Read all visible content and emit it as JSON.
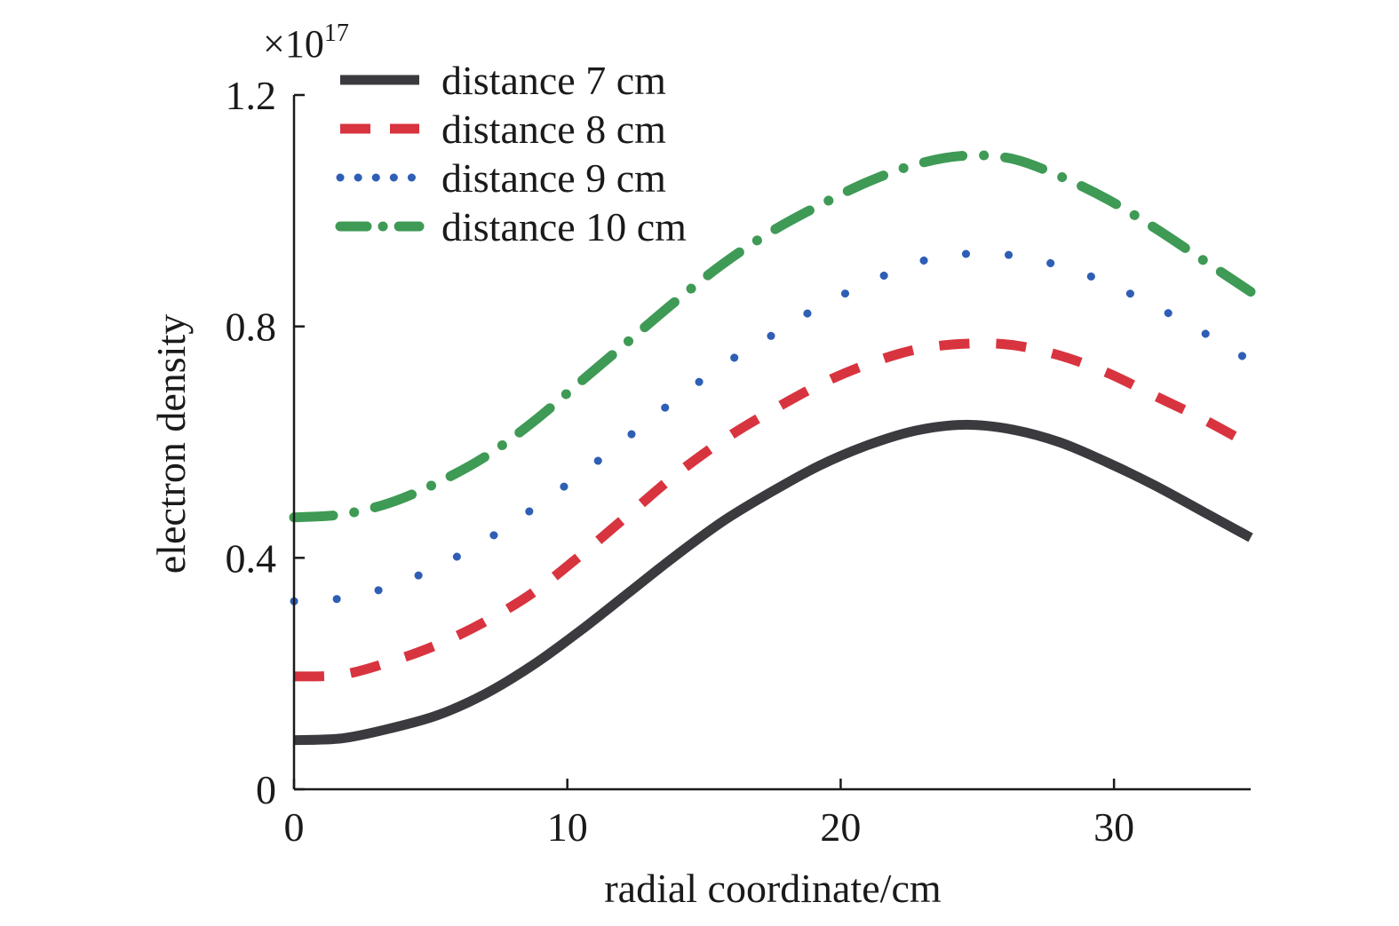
{
  "chart_data": {
    "type": "line",
    "title": "",
    "xlabel": "radial coordinate/cm",
    "ylabel": "electron density",
    "y_multiplier": {
      "base": "×10",
      "exponent": "17"
    },
    "xlim": [
      0,
      35
    ],
    "ylim": [
      0,
      1.2
    ],
    "x_ticks": [
      0,
      10,
      20,
      30
    ],
    "x_tick_labels": [
      "0",
      "10",
      "20",
      "30"
    ],
    "y_ticks": [
      0,
      0.4,
      0.8,
      1.2
    ],
    "y_tick_labels": [
      "0",
      "0.4",
      "0.8",
      "1.2"
    ],
    "grid": false,
    "legend_position": "top-left",
    "x": [
      0,
      1.75,
      3.5,
      5.25,
      7,
      8.75,
      10.5,
      12.25,
      14,
      15.75,
      17.5,
      19.25,
      21,
      22.75,
      24.5,
      26.25,
      28,
      29.75,
      31.5,
      33.25,
      35
    ],
    "series": [
      {
        "name": "distance 7 cm",
        "style": "solid",
        "color": "#3a3a3f",
        "values": [
          0.085,
          0.088,
          0.105,
          0.128,
          0.165,
          0.215,
          0.275,
          0.34,
          0.405,
          0.465,
          0.515,
          0.56,
          0.595,
          0.62,
          0.63,
          0.622,
          0.6,
          0.565,
          0.525,
          0.48,
          0.435
        ]
      },
      {
        "name": "distance 8 cm",
        "style": "dashed",
        "color": "#d8343f",
        "values": [
          0.195,
          0.198,
          0.22,
          0.25,
          0.29,
          0.34,
          0.405,
          0.475,
          0.545,
          0.605,
          0.655,
          0.7,
          0.735,
          0.76,
          0.77,
          0.768,
          0.75,
          0.72,
          0.68,
          0.64,
          0.595
        ]
      },
      {
        "name": "distance 9 cm",
        "style": "dotted",
        "color": "#2f5fb5",
        "values": [
          0.325,
          0.33,
          0.35,
          0.385,
          0.43,
          0.485,
          0.545,
          0.61,
          0.675,
          0.735,
          0.785,
          0.835,
          0.875,
          0.91,
          0.925,
          0.923,
          0.905,
          0.875,
          0.835,
          0.79,
          0.74
        ]
      },
      {
        "name": "distance 10 cm",
        "style": "dashdot",
        "color": "#3e9a55",
        "values": [
          0.47,
          0.475,
          0.495,
          0.53,
          0.575,
          0.635,
          0.705,
          0.775,
          0.845,
          0.91,
          0.965,
          1.01,
          1.05,
          1.08,
          1.095,
          1.09,
          1.06,
          1.02,
          0.97,
          0.915,
          0.86
        ]
      }
    ]
  }
}
